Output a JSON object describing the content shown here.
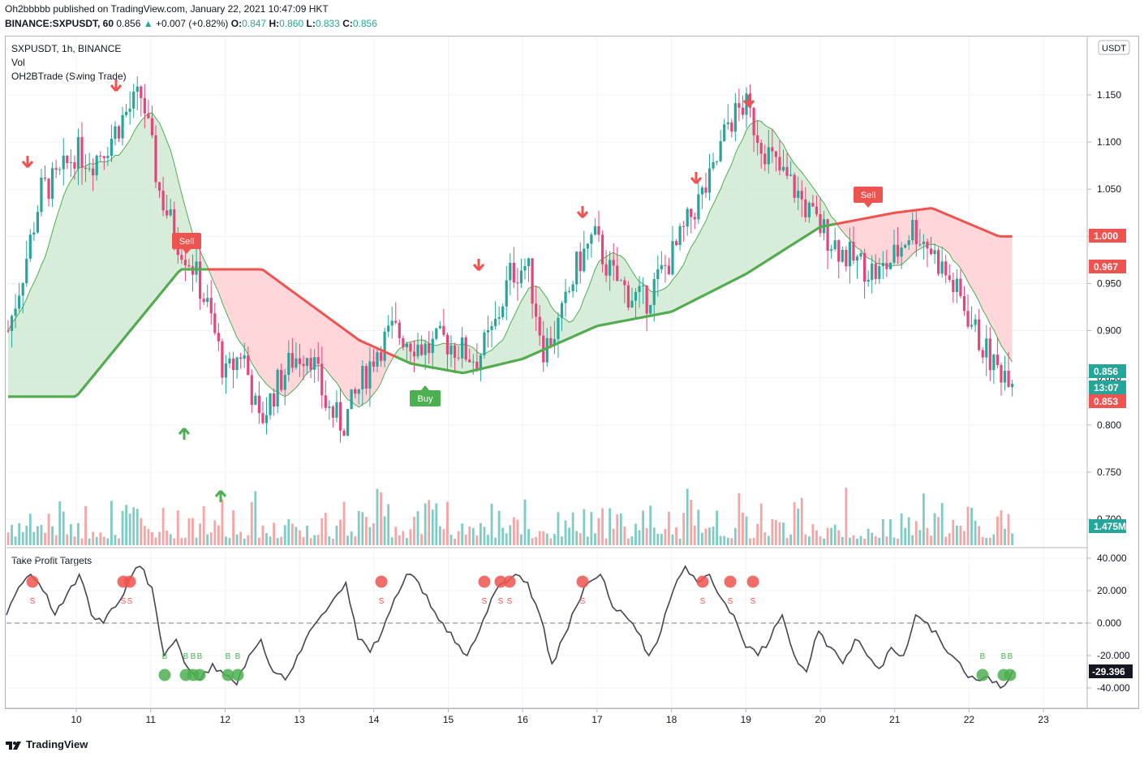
{
  "header": {
    "publisher_line": "Oh2bbbbb published on TradingView.com, January 22, 2021 10:47:09 HKT",
    "symbol": "BINANCE:SXPUSDT, 60",
    "last": "0.856",
    "change": "+0.007 (+0.82%)",
    "o_label": "O:",
    "o_val": "0.847",
    "h_label": "H:",
    "h_val": "0.860",
    "l_label": "L:",
    "l_val": "0.833",
    "c_label": "C:",
    "c_val": "0.856"
  },
  "legend": {
    "symbol_interval": "SXPUSDT, 1h, BINANCE",
    "vol": "Vol",
    "indicator": "OH2BTrade (Swing Trade)",
    "oscillator": "Take Profit Targets"
  },
  "price_axis": {
    "currency": "USDT",
    "ticks": [
      "1.150",
      "1.100",
      "1.050",
      "1.000",
      "0.950",
      "0.900",
      "0.850",
      "0.800",
      "0.750",
      "0.700"
    ],
    "badges": [
      {
        "text": "1.000",
        "color": "#ef5350"
      },
      {
        "text": "0.967",
        "color": "#ef5350"
      },
      {
        "text": "0.856",
        "color": "#26a69a"
      },
      {
        "text": "13:07",
        "color": "#26a69a"
      },
      {
        "text": "0.853",
        "color": "#ef5350"
      },
      {
        "text": "1.475M",
        "color": "#26a69a"
      }
    ]
  },
  "osc_axis": {
    "ticks": [
      "40.000",
      "20.000",
      "0.000",
      "-20.000",
      "-40.000"
    ],
    "current": "-29.396"
  },
  "time_axis": {
    "ticks": [
      "10",
      "11",
      "12",
      "13",
      "14",
      "15",
      "16",
      "17",
      "18",
      "19",
      "20",
      "21",
      "22",
      "23"
    ]
  },
  "signals": {
    "sell": "Sell",
    "buy": "Buy",
    "b": "B",
    "s": "S"
  },
  "colors": {
    "up": "#26a69a",
    "down": "#ef5350",
    "pink": "#e5457a",
    "green_line": "#4caf50",
    "red_line": "#ef5350"
  },
  "chart_data": {
    "type": "candlestick",
    "x_dates": [
      "10",
      "11",
      "12",
      "13",
      "14",
      "15",
      "16",
      "17",
      "18",
      "19",
      "20",
      "21",
      "22"
    ],
    "price_ylim": [
      0.67,
      1.19
    ],
    "close_path": [
      0.9,
      0.97,
      1.05,
      1.06,
      1.09,
      1.08,
      1.1,
      1.13,
      1.15,
      1.05,
      1.0,
      0.97,
      0.92,
      0.85,
      0.88,
      0.8,
      0.84,
      0.87,
      0.88,
      0.82,
      0.8,
      0.84,
      0.88,
      0.9,
      0.89,
      0.88,
      0.89,
      0.88,
      0.87,
      0.9,
      0.96,
      0.97,
      0.88,
      0.91,
      0.97,
      1.0,
      0.96,
      0.94,
      0.93,
      0.96,
      0.99,
      1.03,
      1.06,
      1.12,
      1.14,
      1.1,
      1.07,
      1.05,
      1.02,
      1.0,
      0.98,
      0.97,
      0.96,
      0.98,
      1.01,
      0.99,
      0.96,
      0.93,
      0.89,
      0.86,
      0.856
    ],
    "slow_ma_red": [
      [
        10.0,
        0.83
      ],
      [
        11.4,
        0.965
      ],
      [
        12.5,
        0.965
      ],
      [
        13.8,
        0.89
      ],
      [
        14.5,
        0.865
      ],
      [
        15.2,
        0.855
      ],
      [
        16.0,
        0.87
      ],
      [
        17.0,
        0.905
      ],
      [
        18.0,
        0.92
      ],
      [
        19.0,
        0.96
      ],
      [
        20.0,
        1.01
      ],
      [
        21.0,
        1.025
      ],
      [
        21.5,
        1.03
      ],
      [
        22.4,
        1.0
      ]
    ],
    "oscillator_ylim": [
      -45,
      45
    ],
    "oscillator": [
      5,
      22,
      30,
      20,
      5,
      18,
      30,
      5,
      0,
      10,
      25,
      35,
      22,
      -20,
      -10,
      -28,
      -35,
      -25,
      -32,
      -38,
      -20,
      -10,
      -30,
      -35,
      -20,
      -5,
      5,
      15,
      25,
      -10,
      -18,
      -5,
      15,
      30,
      25,
      10,
      0,
      -12,
      -20,
      -5,
      15,
      25,
      30,
      25,
      5,
      -25,
      -8,
      10,
      25,
      30,
      10,
      5,
      -5,
      -20,
      -5,
      20,
      35,
      25,
      30,
      15,
      5,
      -15,
      -20,
      -10,
      5,
      -20,
      -30,
      -5,
      -15,
      -25,
      -10,
      -20,
      -28,
      -15,
      -20,
      5,
      0,
      -10,
      -20,
      -30,
      -35,
      -33,
      -40,
      -29.396
    ]
  }
}
